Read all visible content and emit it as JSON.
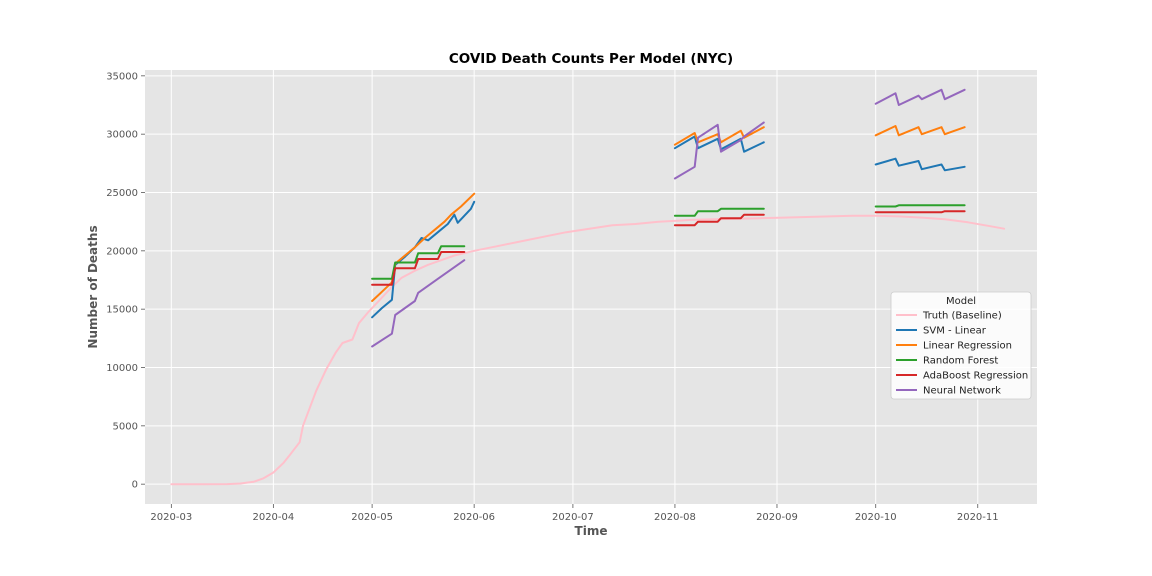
{
  "chart_data": {
    "type": "line",
    "title": "COVID Death Counts Per Model (NYC)",
    "xlabel": "Time",
    "ylabel": "Number of Deaths",
    "x_range": [
      "2020-02-22",
      "2020-11-19"
    ],
    "ylim": [
      -1700,
      35500
    ],
    "x_ticks": [
      "2020-03-01",
      "2020-04-01",
      "2020-05-01",
      "2020-06-01",
      "2020-07-01",
      "2020-08-01",
      "2020-09-01",
      "2020-10-01",
      "2020-11-01"
    ],
    "x_tick_labels": [
      "2020-03",
      "2020-04",
      "2020-05",
      "2020-06",
      "2020-07",
      "2020-08",
      "2020-09",
      "2020-10",
      "2020-11"
    ],
    "y_ticks": [
      0,
      5000,
      10000,
      15000,
      20000,
      25000,
      30000,
      35000
    ],
    "y_tick_labels": [
      "0",
      "5000",
      "10000",
      "15000",
      "20000",
      "25000",
      "30000",
      "35000"
    ],
    "grid": true,
    "legend_title": "Model",
    "legend_position": "center-right",
    "series": [
      {
        "name": "Truth (Baseline)",
        "color": "#ffc0cb",
        "width": 2,
        "segments": [
          [
            [
              "2020-03-01",
              0
            ],
            [
              "2020-03-10",
              0
            ],
            [
              "2020-03-18",
              10
            ],
            [
              "2020-03-22",
              60
            ],
            [
              "2020-03-26",
              200
            ],
            [
              "2020-03-29",
              500
            ],
            [
              "2020-04-01",
              1000
            ],
            [
              "2020-04-04",
              1800
            ],
            [
              "2020-04-06",
              2500
            ],
            [
              "2020-04-09",
              3600
            ],
            [
              "2020-04-10",
              5000
            ],
            [
              "2020-04-12",
              6500
            ],
            [
              "2020-04-14",
              8000
            ],
            [
              "2020-04-17",
              9800
            ],
            [
              "2020-04-20",
              11300
            ],
            [
              "2020-04-22",
              12100
            ],
            [
              "2020-04-25",
              12400
            ],
            [
              "2020-04-27",
              13800
            ],
            [
              "2020-04-30",
              14800
            ],
            [
              "2020-05-04",
              16000
            ],
            [
              "2020-05-07",
              16900
            ],
            [
              "2020-05-10",
              17700
            ],
            [
              "2020-05-14",
              18300
            ],
            [
              "2020-05-18",
              18800
            ],
            [
              "2020-05-22",
              19200
            ],
            [
              "2020-05-26",
              19600
            ],
            [
              "2020-06-01",
              20000
            ],
            [
              "2020-06-08",
              20400
            ],
            [
              "2020-06-15",
              20800
            ],
            [
              "2020-06-22",
              21200
            ],
            [
              "2020-06-29",
              21600
            ],
            [
              "2020-07-06",
              21900
            ],
            [
              "2020-07-13",
              22200
            ],
            [
              "2020-07-20",
              22300
            ],
            [
              "2020-07-27",
              22500
            ],
            [
              "2020-08-03",
              22600
            ],
            [
              "2020-08-06",
              22650
            ],
            [
              "2020-08-13",
              22700
            ],
            [
              "2020-08-20",
              22750
            ],
            [
              "2020-08-27",
              22800
            ],
            [
              "2020-09-03",
              22850
            ],
            [
              "2020-09-10",
              22900
            ],
            [
              "2020-09-17",
              22950
            ],
            [
              "2020-09-24",
              23000
            ],
            [
              "2020-09-30",
              23000
            ],
            [
              "2020-10-01",
              23000
            ],
            [
              "2020-10-08",
              22950
            ],
            [
              "2020-10-15",
              22850
            ],
            [
              "2020-10-22",
              22700
            ],
            [
              "2020-10-29",
              22450
            ],
            [
              "2020-11-05",
              22100
            ],
            [
              "2020-11-09",
              21900
            ]
          ]
        ]
      },
      {
        "name": "SVM - Linear",
        "color": "#1f77b4",
        "width": 2,
        "segments": [
          [
            [
              "2020-05-01",
              14300
            ],
            [
              "2020-05-04",
              15100
            ],
            [
              "2020-05-07",
              15800
            ],
            [
              "2020-05-08",
              18800
            ],
            [
              "2020-05-11",
              19500
            ],
            [
              "2020-05-14",
              20300
            ],
            [
              "2020-05-16",
              21100
            ],
            [
              "2020-05-18",
              20900
            ],
            [
              "2020-05-21",
              21600
            ],
            [
              "2020-05-24",
              22300
            ],
            [
              "2020-05-26",
              23100
            ],
            [
              "2020-05-27",
              22400
            ],
            [
              "2020-05-29",
              23000
            ],
            [
              "2020-05-31",
              23600
            ],
            [
              "2020-06-01",
              24200
            ]
          ],
          [
            [
              "2020-08-01",
              28800
            ],
            [
              "2020-08-07",
              29800
            ],
            [
              "2020-08-08",
              28800
            ],
            [
              "2020-08-14",
              29600
            ],
            [
              "2020-08-15",
              28700
            ],
            [
              "2020-08-21",
              29600
            ],
            [
              "2020-08-22",
              28500
            ],
            [
              "2020-08-28",
              29300
            ]
          ],
          [
            [
              "2020-10-01",
              27400
            ],
            [
              "2020-10-07",
              27900
            ],
            [
              "2020-10-08",
              27300
            ],
            [
              "2020-10-14",
              27700
            ],
            [
              "2020-10-15",
              27000
            ],
            [
              "2020-10-21",
              27400
            ],
            [
              "2020-10-22",
              26900
            ],
            [
              "2020-10-28",
              27200
            ]
          ]
        ]
      },
      {
        "name": "Linear Regression",
        "color": "#ff7f0e",
        "width": 2,
        "segments": [
          [
            [
              "2020-05-01",
              15700
            ],
            [
              "2020-05-04",
              16500
            ],
            [
              "2020-05-07",
              17300
            ],
            [
              "2020-05-08",
              18900
            ],
            [
              "2020-05-11",
              19600
            ],
            [
              "2020-05-14",
              20300
            ],
            [
              "2020-05-17",
              21100
            ],
            [
              "2020-05-20",
              21800
            ],
            [
              "2020-05-23",
              22500
            ],
            [
              "2020-05-25",
              23100
            ],
            [
              "2020-05-28",
              23800
            ],
            [
              "2020-06-01",
              24900
            ]
          ],
          [
            [
              "2020-08-01",
              29100
            ],
            [
              "2020-08-07",
              30100
            ],
            [
              "2020-08-08",
              29300
            ],
            [
              "2020-08-14",
              30000
            ],
            [
              "2020-08-15",
              29300
            ],
            [
              "2020-08-21",
              30300
            ],
            [
              "2020-08-22",
              29700
            ],
            [
              "2020-08-28",
              30600
            ]
          ],
          [
            [
              "2020-10-01",
              29900
            ],
            [
              "2020-10-07",
              30700
            ],
            [
              "2020-10-08",
              29900
            ],
            [
              "2020-10-14",
              30600
            ],
            [
              "2020-10-15",
              30000
            ],
            [
              "2020-10-21",
              30600
            ],
            [
              "2020-10-22",
              30000
            ],
            [
              "2020-10-28",
              30600
            ]
          ]
        ]
      },
      {
        "name": "Random Forest",
        "color": "#2ca02c",
        "width": 2,
        "segments": [
          [
            [
              "2020-05-01",
              17600
            ],
            [
              "2020-05-07",
              17600
            ],
            [
              "2020-05-08",
              19000
            ],
            [
              "2020-05-14",
              19000
            ],
            [
              "2020-05-15",
              19800
            ],
            [
              "2020-05-21",
              19800
            ],
            [
              "2020-05-22",
              20400
            ],
            [
              "2020-05-29",
              20400
            ]
          ],
          [
            [
              "2020-08-01",
              23000
            ],
            [
              "2020-08-07",
              23000
            ],
            [
              "2020-08-08",
              23400
            ],
            [
              "2020-08-14",
              23400
            ],
            [
              "2020-08-15",
              23600
            ],
            [
              "2020-08-21",
              23600
            ],
            [
              "2020-08-22",
              23600
            ],
            [
              "2020-08-28",
              23600
            ]
          ],
          [
            [
              "2020-10-01",
              23800
            ],
            [
              "2020-10-07",
              23800
            ],
            [
              "2020-10-08",
              23900
            ],
            [
              "2020-10-14",
              23900
            ],
            [
              "2020-10-15",
              23900
            ],
            [
              "2020-10-21",
              23900
            ],
            [
              "2020-10-22",
              23900
            ],
            [
              "2020-10-28",
              23900
            ]
          ]
        ]
      },
      {
        "name": "AdaBoost Regression",
        "color": "#d62728",
        "width": 2,
        "segments": [
          [
            [
              "2020-05-01",
              17100
            ],
            [
              "2020-05-07",
              17100
            ],
            [
              "2020-05-08",
              18500
            ],
            [
              "2020-05-14",
              18500
            ],
            [
              "2020-05-15",
              19300
            ],
            [
              "2020-05-21",
              19300
            ],
            [
              "2020-05-22",
              19900
            ],
            [
              "2020-05-29",
              19900
            ]
          ],
          [
            [
              "2020-08-01",
              22200
            ],
            [
              "2020-08-07",
              22200
            ],
            [
              "2020-08-08",
              22500
            ],
            [
              "2020-08-14",
              22500
            ],
            [
              "2020-08-15",
              22800
            ],
            [
              "2020-08-21",
              22800
            ],
            [
              "2020-08-22",
              23100
            ],
            [
              "2020-08-28",
              23100
            ]
          ],
          [
            [
              "2020-10-01",
              23300
            ],
            [
              "2020-10-07",
              23300
            ],
            [
              "2020-10-08",
              23300
            ],
            [
              "2020-10-14",
              23300
            ],
            [
              "2020-10-15",
              23300
            ],
            [
              "2020-10-21",
              23300
            ],
            [
              "2020-10-22",
              23400
            ],
            [
              "2020-10-28",
              23400
            ]
          ]
        ]
      },
      {
        "name": "Neural Network",
        "color": "#9467bd",
        "width": 2,
        "segments": [
          [
            [
              "2020-05-01",
              11800
            ],
            [
              "2020-05-07",
              12900
            ],
            [
              "2020-05-08",
              14500
            ],
            [
              "2020-05-14",
              15700
            ],
            [
              "2020-05-15",
              16400
            ],
            [
              "2020-05-21",
              17600
            ],
            [
              "2020-05-29",
              19200
            ]
          ],
          [
            [
              "2020-08-01",
              26200
            ],
            [
              "2020-08-07",
              27200
            ],
            [
              "2020-08-08",
              29700
            ],
            [
              "2020-08-14",
              30800
            ],
            [
              "2020-08-15",
              28500
            ],
            [
              "2020-08-21",
              29500
            ],
            [
              "2020-08-22",
              29800
            ],
            [
              "2020-08-28",
              31000
            ]
          ],
          [
            [
              "2020-10-01",
              32600
            ],
            [
              "2020-10-07",
              33500
            ],
            [
              "2020-10-08",
              32500
            ],
            [
              "2020-10-14",
              33300
            ],
            [
              "2020-10-15",
              33000
            ],
            [
              "2020-10-21",
              33800
            ],
            [
              "2020-10-22",
              33000
            ],
            [
              "2020-10-28",
              33800
            ]
          ]
        ]
      }
    ]
  }
}
